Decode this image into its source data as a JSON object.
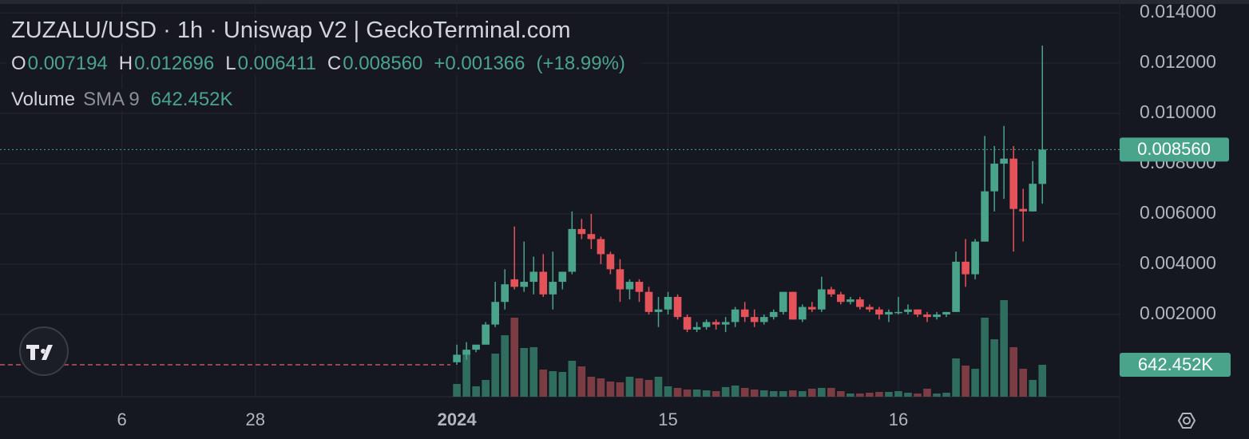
{
  "chart_data": {
    "type": "candlestick",
    "title": "ZUZALU/USD · 1h · Uniswap V2 | GeckoTerminal.com",
    "legend_keys": [
      "O",
      "H",
      "L",
      "C"
    ],
    "legend_values": [
      {
        "value": 0.007194,
        "label": "0.007194"
      },
      {
        "value": 0.012696,
        "label": "0.012696"
      },
      {
        "value": 0.006411,
        "label": "0.006411"
      },
      {
        "value": 0.00856,
        "label": "0.008560"
      }
    ],
    "change": {
      "value": 0.001366,
      "label": "+0.001366"
    },
    "change_percent": {
      "value": 18.99,
      "label": "(+18.99%)"
    },
    "volume_title": "Volume",
    "volume_indicator": "SMA 9",
    "volume_indicator_value": {
      "value": 642452,
      "label": "642.452K"
    },
    "last_price": {
      "value": 0.00856,
      "label": "0.008560"
    },
    "last_volume": {
      "value": 642452,
      "label": "642.452K"
    },
    "up_color": "#4aa48c",
    "down_color": "#e5535a",
    "volume_up_color": "#2f6d5f",
    "volume_down_color": "#7c3c43",
    "grid": true,
    "x": [
      0,
      1,
      2,
      3,
      4,
      5,
      6,
      7,
      8,
      9,
      10,
      11,
      12,
      13,
      14,
      15,
      16,
      17,
      18,
      19,
      20,
      21,
      22,
      23,
      24,
      25,
      26,
      27,
      28,
      29,
      30,
      31,
      32,
      33,
      34,
      35,
      36,
      37,
      38,
      39,
      40,
      41,
      42,
      43,
      44,
      45,
      46,
      47,
      48,
      49,
      50,
      51,
      52,
      53,
      54,
      55,
      56,
      57,
      58,
      59,
      60,
      61
    ],
    "open": [
      0.0001,
      0.0004,
      0.0006,
      0.0008,
      0.0016,
      0.0025,
      0.0034,
      0.0031,
      0.0033,
      0.0037,
      0.0028,
      0.0033,
      0.0037,
      0.0054,
      0.0052,
      0.005,
      0.0044,
      0.0038,
      0.003,
      0.0033,
      0.0029,
      0.0021,
      0.0022,
      0.0027,
      0.0019,
      0.0014,
      0.0015,
      0.0017,
      0.0016,
      0.0017,
      0.0022,
      0.0019,
      0.0017,
      0.0019,
      0.0021,
      0.0029,
      0.0018,
      0.0023,
      0.0022,
      0.003,
      0.0028,
      0.0025,
      0.0026,
      0.0023,
      0.0022,
      0.002,
      0.0021,
      0.0021,
      0.0022,
      0.002,
      0.0019,
      0.002,
      0.0021,
      0.0041,
      0.0036,
      0.0049,
      0.0069,
      0.008,
      0.0082,
      0.0062,
      0.0061,
      0.007194
    ],
    "high": [
      0.0008,
      0.0009,
      0.0008,
      0.0017,
      0.0033,
      0.0038,
      0.0055,
      0.0049,
      0.0043,
      0.0044,
      0.0045,
      0.0037,
      0.0061,
      0.0058,
      0.006,
      0.0051,
      0.0045,
      0.0042,
      0.0034,
      0.0034,
      0.0031,
      0.0027,
      0.0029,
      0.0028,
      0.002,
      0.0017,
      0.0018,
      0.0018,
      0.0019,
      0.0023,
      0.0025,
      0.0022,
      0.002,
      0.0022,
      0.0029,
      0.0029,
      0.0024,
      0.0025,
      0.0035,
      0.0031,
      0.0029,
      0.0027,
      0.0027,
      0.0024,
      0.0023,
      0.0022,
      0.0027,
      0.0024,
      0.0022,
      0.0021,
      0.0021,
      0.0021,
      0.0045,
      0.005,
      0.005,
      0.0091,
      0.0087,
      0.0095,
      0.0087,
      0.007,
      0.0081,
      0.012696
    ],
    "low": [
      0.0,
      0.0002,
      0.0005,
      0.0008,
      0.0015,
      0.0022,
      0.003,
      0.0029,
      0.0028,
      0.0027,
      0.0022,
      0.003,
      0.0036,
      0.005,
      0.0046,
      0.004,
      0.0036,
      0.0025,
      0.0026,
      0.0025,
      0.002,
      0.0015,
      0.002,
      0.0018,
      0.0013,
      0.0013,
      0.0014,
      0.0014,
      0.0013,
      0.0015,
      0.0017,
      0.0015,
      0.0016,
      0.0018,
      0.002,
      0.0018,
      0.0017,
      0.0021,
      0.0021,
      0.0027,
      0.0024,
      0.0024,
      0.0022,
      0.0021,
      0.0018,
      0.0017,
      0.002,
      0.002,
      0.0019,
      0.0017,
      0.0018,
      0.0019,
      0.0021,
      0.0031,
      0.0034,
      0.0049,
      0.0061,
      0.0066,
      0.0045,
      0.0049,
      0.0061,
      0.006411
    ],
    "close": [
      0.0004,
      0.0006,
      0.0008,
      0.0016,
      0.0025,
      0.0032,
      0.0031,
      0.0033,
      0.0037,
      0.0028,
      0.0033,
      0.0037,
      0.0054,
      0.0052,
      0.005,
      0.0044,
      0.0038,
      0.003,
      0.0033,
      0.0029,
      0.0021,
      0.0022,
      0.0027,
      0.0019,
      0.0014,
      0.0015,
      0.0017,
      0.0016,
      0.0017,
      0.0022,
      0.0019,
      0.0017,
      0.0019,
      0.0021,
      0.0029,
      0.0018,
      0.0023,
      0.0022,
      0.003,
      0.0028,
      0.0025,
      0.0026,
      0.0023,
      0.0022,
      0.002,
      0.0021,
      0.0021,
      0.0022,
      0.002,
      0.0019,
      0.002,
      0.0021,
      0.0041,
      0.0036,
      0.0049,
      0.0069,
      0.008,
      0.0082,
      0.0062,
      0.0061,
      0.0072,
      0.00856
    ],
    "volume": [
      257000,
      915000,
      209000,
      337000,
      867000,
      1237000,
      1590000,
      980000,
      996000,
      546000,
      514000,
      498000,
      723000,
      610000,
      402000,
      369000,
      305000,
      289000,
      402000,
      369000,
      337000,
      402000,
      209000,
      177000,
      145000,
      145000,
      128000,
      112000,
      193000,
      225000,
      177000,
      145000,
      128000,
      112000,
      112000,
      128000,
      112000,
      161000,
      177000,
      177000,
      112000,
      64000,
      64000,
      80000,
      96000,
      96000,
      112000,
      80000,
      64000,
      161000,
      64000,
      80000,
      771000,
      626000,
      562000,
      1590000,
      1156000,
      1943000,
      996000,
      562000,
      337000,
      642452
    ],
    "xlim": [
      -47.6,
      69.05
    ],
    "xticks": [
      {
        "value": -34.9,
        "label": "6"
      },
      {
        "value": -21.0,
        "label": "28"
      },
      {
        "value": 0,
        "label": "2024"
      },
      {
        "value": 22.0,
        "label": "15"
      },
      {
        "value": 46.0,
        "label": "16"
      }
    ],
    "ylim": [
      -0.00127,
      0.01451
    ],
    "yticks": [
      {
        "value": 0.002,
        "label": "0.002000"
      },
      {
        "value": 0.004,
        "label": "0.004000"
      },
      {
        "value": 0.006,
        "label": "0.006000"
      },
      {
        "value": 0.008,
        "label": "0.008000"
      },
      {
        "value": 0.01,
        "label": "0.010000"
      },
      {
        "value": 0.012,
        "label": "0.012000"
      },
      {
        "value": 0.014,
        "label": "0.014000"
      }
    ],
    "volume_ylim": [
      0,
      7982300
    ]
  }
}
